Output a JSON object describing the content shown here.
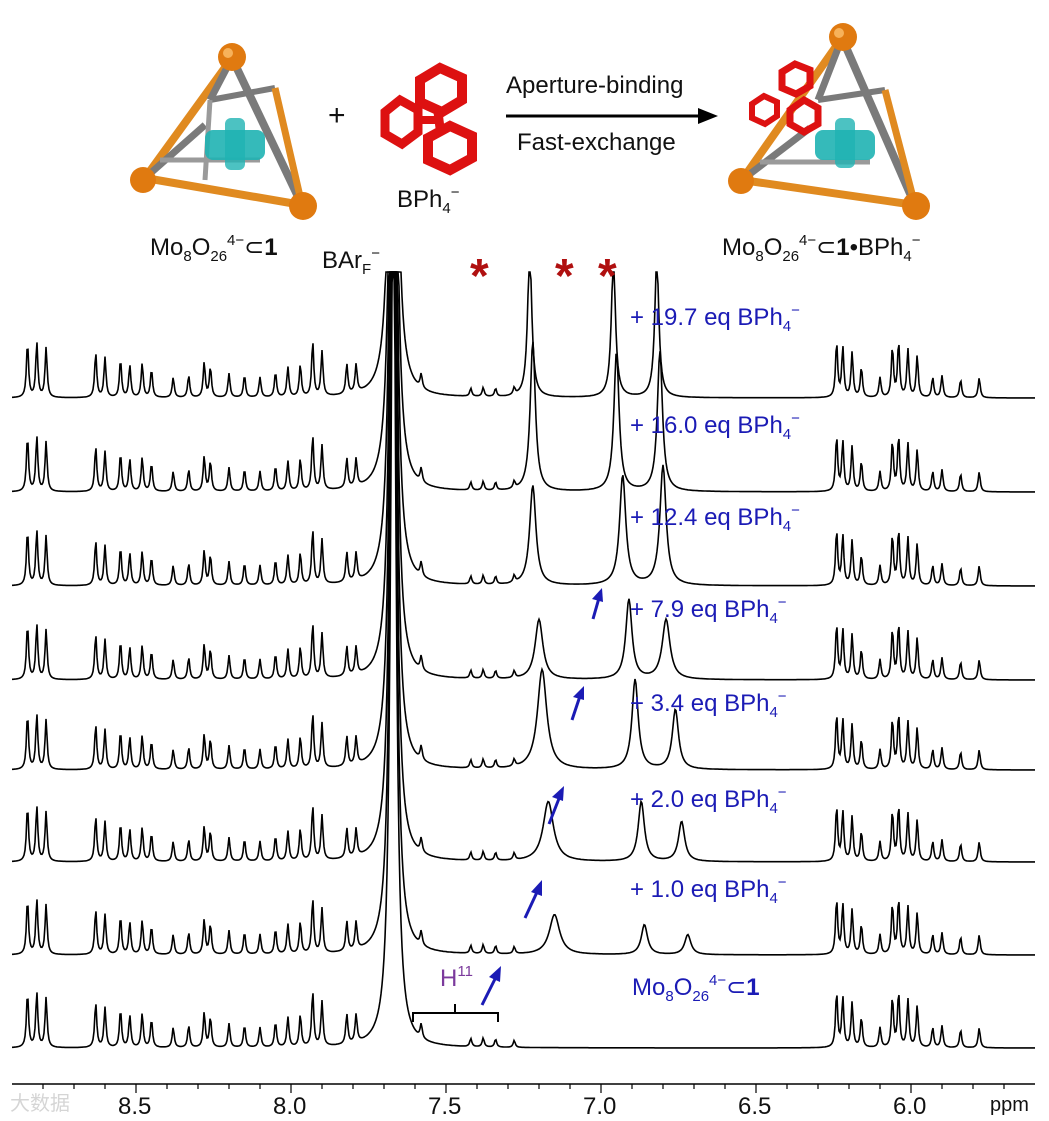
{
  "scheme": {
    "host_label_pre": "Mo",
    "host_label_sub1": "8",
    "host_label_mid": "O",
    "host_label_sub2": "26",
    "host_label_sup": "4−",
    "host_label_sym": "⊂",
    "host_label_bold": "1",
    "plus": "+",
    "guest_label": "BPh",
    "guest_sub": "4",
    "guest_sup": "−",
    "arrow_top": "Aperture-binding",
    "arrow_bottom": "Fast-exchange",
    "product_label_dot": "•",
    "product_label_guest": "BPh"
  },
  "colors": {
    "cage_vertex": "#e07a10",
    "cage_edge_gray": "#7a7a7a",
    "cage_edge_orange": "#e08a20",
    "guest_red": "#dd1111",
    "inner_cyan": "#1fb3b3",
    "trace": "#000000",
    "annotation_blue": "#1b1bb5",
    "star_red": "#b01010",
    "h11_purple": "#7b3a9c"
  },
  "spectrum": {
    "reference_label": "BAr",
    "reference_sub": "F",
    "reference_sup": "−",
    "star": "*",
    "h11_label": "H",
    "h11_sup": "11",
    "x_axis": {
      "unit": "ppm",
      "ticks": [
        "8.5",
        "8.0",
        "7.5",
        "7.0",
        "6.5",
        "6.0"
      ],
      "range_ppm": [
        8.9,
        5.6
      ]
    },
    "traces": [
      {
        "label": "+ 19.7 eq BPh",
        "sub": "4",
        "sup": "−"
      },
      {
        "label": "+ 16.0 eq BPh",
        "sub": "4",
        "sup": "−"
      },
      {
        "label": "+ 12.4 eq BPh",
        "sub": "4",
        "sup": "−"
      },
      {
        "label": "+ 7.9 eq BPh",
        "sub": "4",
        "sup": "−"
      },
      {
        "label": "+ 3.4 eq BPh",
        "sub": "4",
        "sup": "−"
      },
      {
        "label": "+ 2.0 eq BPh",
        "sub": "4",
        "sup": "−"
      },
      {
        "label": "+ 1.0 eq BPh",
        "sub": "4",
        "sup": "−"
      },
      {
        "label": "",
        "sub": "",
        "sup": ""
      }
    ]
  },
  "watermark": "大数据"
}
